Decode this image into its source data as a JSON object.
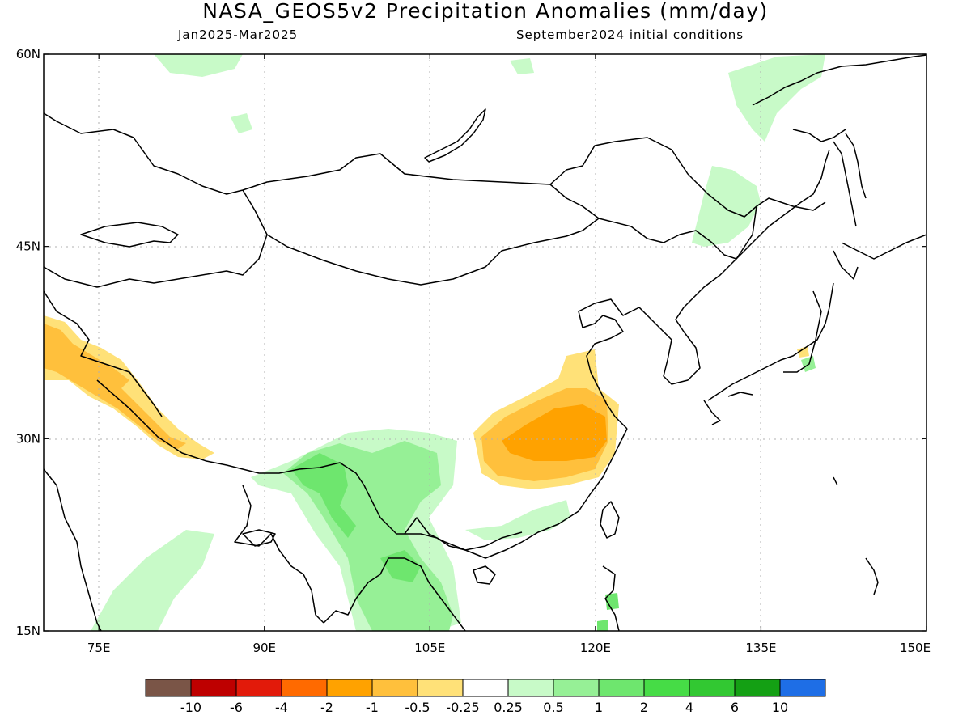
{
  "header": {
    "title": "NASA_GEOS5v2 Precipitation Anomalies (mm/day)",
    "period": "Jan2025-Mar2025",
    "init": "September2024 initial conditions"
  },
  "map": {
    "lon_range": [
      70,
      150
    ],
    "lat_range": [
      15,
      60
    ],
    "lon_ticks": [
      {
        "value": 75,
        "label": "75E"
      },
      {
        "value": 90,
        "label": "90E"
      },
      {
        "value": 105,
        "label": "105E"
      },
      {
        "value": 120,
        "label": "120E"
      },
      {
        "value": 135,
        "label": "135E"
      },
      {
        "value": 150,
        "label": "150E"
      }
    ],
    "lat_ticks": [
      {
        "value": 60,
        "label": "60N"
      },
      {
        "value": 45,
        "label": "45N"
      },
      {
        "value": 30,
        "label": "30N"
      },
      {
        "value": 15,
        "label": "15N"
      }
    ],
    "gridlines": "dotted"
  },
  "colorbar": {
    "colors": [
      "#7a5547",
      "#be0000",
      "#e21a0a",
      "#ff6a00",
      "#ffa200",
      "#ffc03c",
      "#ffe178",
      "#ffffff",
      "#c8fac8",
      "#96f096",
      "#6ee66e",
      "#46dc46",
      "#32c832",
      "#14a014",
      "#1e6ee6"
    ],
    "labels": [
      "-10",
      "-6",
      "-4",
      "-2",
      "-1",
      "-0.5",
      "-0.25",
      "0.25",
      "0.5",
      "1",
      "2",
      "4",
      "6",
      "10"
    ]
  },
  "anomaly_regions": [
    {
      "id": "west-himalaya-light",
      "level": "-0.25",
      "color": "#ffe178"
    },
    {
      "id": "west-himalaya-mid",
      "level": "-0.5",
      "color": "#ffc03c"
    },
    {
      "id": "east-china-light",
      "level": "-0.25",
      "color": "#ffe178"
    },
    {
      "id": "east-china-mid",
      "level": "-0.5",
      "color": "#ffc03c"
    },
    {
      "id": "east-china-core",
      "level": "-1",
      "color": "#ffa200"
    },
    {
      "id": "japan-dry",
      "level": "-0.25",
      "color": "#ffe178"
    },
    {
      "id": "se-asia-wet",
      "level": "0.5",
      "color": "#96f096"
    },
    {
      "id": "se-asia-light",
      "level": "0.25",
      "color": "#c8fac8"
    },
    {
      "id": "myanmar-wet",
      "level": "1",
      "color": "#6ee66e"
    },
    {
      "id": "india-wet",
      "level": "0.25",
      "color": "#c8fac8"
    },
    {
      "id": "manchuria-wet",
      "level": "0.25",
      "color": "#c8fac8"
    },
    {
      "id": "okhotsk-wet",
      "level": "0.25",
      "color": "#c8fac8"
    },
    {
      "id": "siberia-wet",
      "level": "0.25",
      "color": "#c8fac8"
    },
    {
      "id": "taiwan-wet",
      "level": "1",
      "color": "#6ee66e"
    }
  ]
}
